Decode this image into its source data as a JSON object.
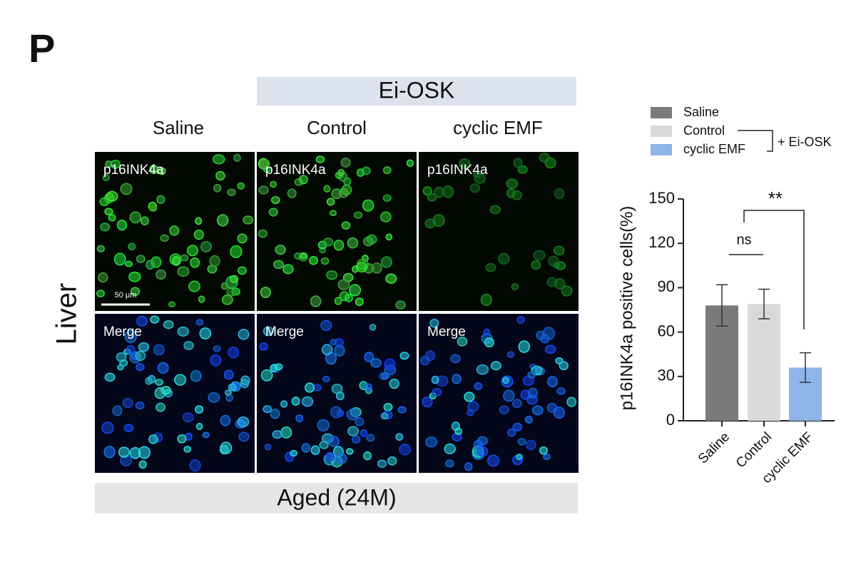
{
  "panel_label": "P",
  "figure": {
    "group_header": "Ei-OSK",
    "columns": [
      "Saline",
      "Control",
      "cyclic EMF"
    ],
    "row_label": "Liver",
    "image_labels": [
      "p16INK4a",
      "p16INK4a",
      "p16INK4a",
      "Merge",
      "Merge",
      "Merge"
    ],
    "scale_bar": "50 μm",
    "footer": "Aged (24M)"
  },
  "chart_data": {
    "type": "bar",
    "y_label": "p16INK4a positive cells(%)",
    "categories": [
      "Saline",
      "Control",
      "cyclic EMF"
    ],
    "values": [
      78,
      79,
      36
    ],
    "errors": [
      14,
      10,
      10
    ],
    "colors": [
      "#7a7a7a",
      "#d9d9d9",
      "#8fb4e8"
    ],
    "ylim": [
      0,
      150
    ],
    "yticks": [
      0,
      30,
      60,
      90,
      120,
      150
    ],
    "legend_note": "+ Ei-OSK",
    "annotations": [
      "ns",
      "**"
    ]
  }
}
